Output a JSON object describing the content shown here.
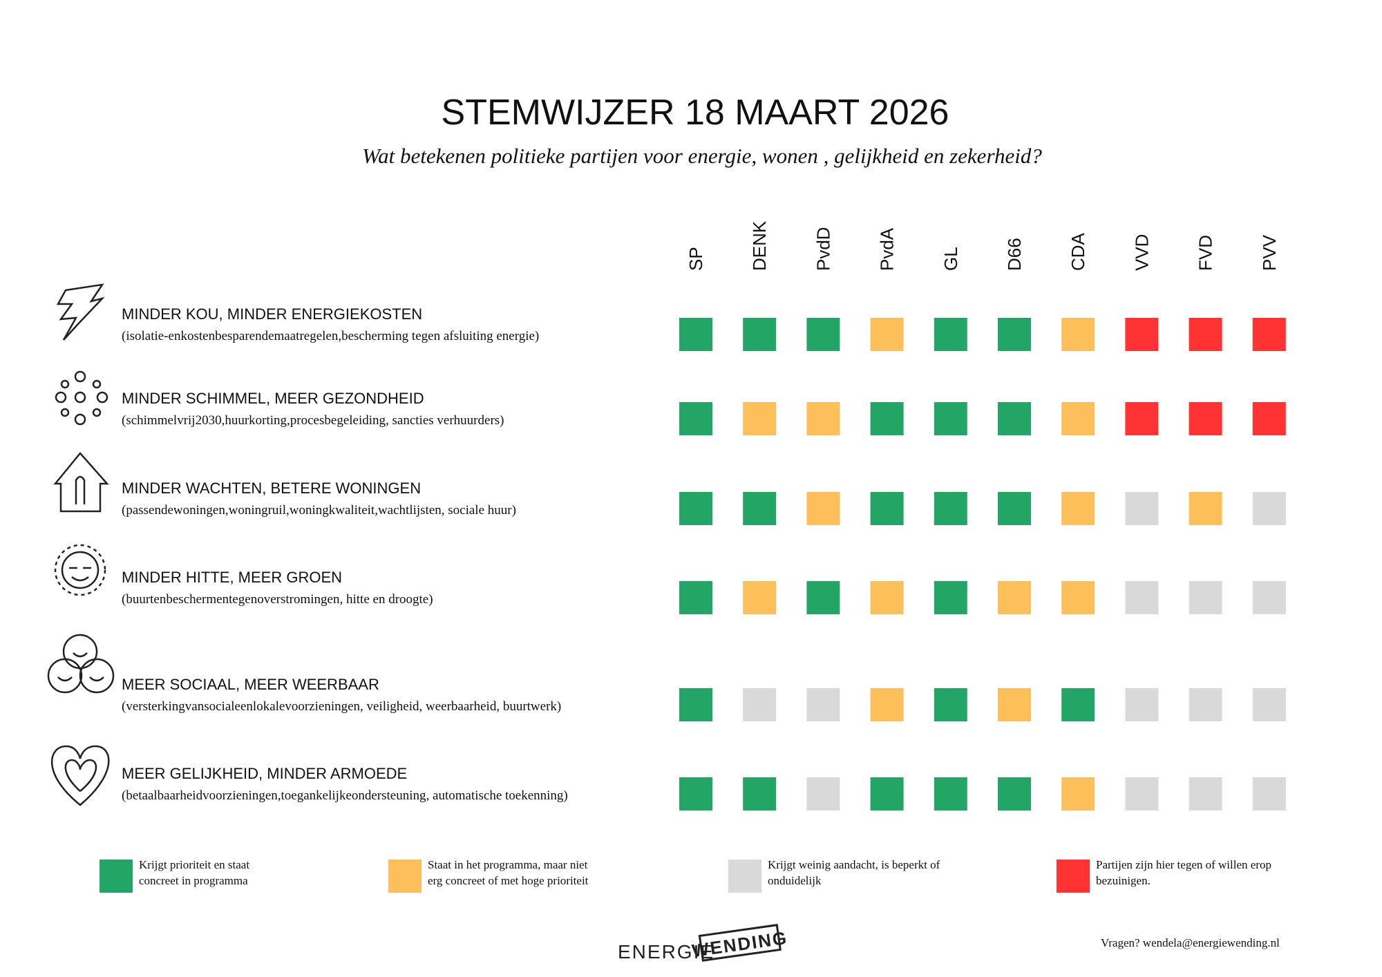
{
  "header": {
    "title": "STEMWIJZER 18 MAART 2026",
    "subtitle": "Wat betekenen politieke partijen voor energie, wonen , gelijkheid en zekerheid?"
  },
  "table": {
    "parties": [
      "SP",
      "DENK",
      "PvdD",
      "PvdA",
      "GL",
      "D66",
      "CDA",
      "VVD",
      "FVD",
      "PVV"
    ],
    "rows": [
      {
        "title": "MINDER KOU, MINDER ENERGIEKOSTEN",
        "detail": "(isolatie-enkostenbesparendemaatregelen,bescherming tegen afsluiting energie)",
        "ratings": [
          0,
          0,
          0,
          1,
          0,
          0,
          1,
          3,
          3,
          3
        ]
      },
      {
        "title": "MINDER SCHIMMEL, MEER GEZONDHEID",
        "detail": "(schimmelvrij2030,huurkorting,procesbegeleiding, sancties verhuurders)",
        "ratings": [
          0,
          1,
          1,
          0,
          0,
          0,
          1,
          3,
          3,
          3
        ]
      },
      {
        "title": "MINDER WACHTEN, BETERE WONINGEN",
        "detail": "(passendewoningen,woningruil,woningkwaliteit,wachtlijsten, sociale huur)",
        "ratings": [
          0,
          0,
          1,
          0,
          0,
          0,
          1,
          2,
          1,
          2
        ]
      },
      {
        "title": "MINDER HITTE, MEER GROEN",
        "detail": "(buurtenbeschermentegenoverstromingen, hitte en droogte)",
        "ratings": [
          0,
          1,
          0,
          1,
          0,
          1,
          1,
          2,
          2,
          2
        ]
      },
      {
        "title": "MEER SOCIAAL, MEER WEERBAAR",
        "detail": "(versterkingvansocialeenlokalevoorzieningen, veiligheid, weerbaarheid, buurtwerk)",
        "ratings": [
          0,
          2,
          2,
          1,
          0,
          1,
          0,
          2,
          2,
          2
        ]
      },
      {
        "title": "MEER GELIJKHEID, MINDER ARMOEDE",
        "detail": "(betaalbaarheidvoorzieningen,toegankelijkeondersteuning, automatische toekenning)",
        "ratings": [
          0,
          0,
          2,
          0,
          0,
          0,
          1,
          2,
          2,
          2
        ]
      }
    ]
  },
  "legend": [
    {
      "color": "#22a565",
      "lines": [
        "Krijgt prioriteit en staat",
        "concreet in programma"
      ]
    },
    {
      "color": "#fdbf5a",
      "lines": [
        "Staat in het programma, maar niet",
        "erg concreet of met hoge prioriteit"
      ]
    },
    {
      "color": "#d9d9d9",
      "lines": [
        "Krijgt weinig aandacht, is beperkt of",
        "onduidelijk"
      ]
    },
    {
      "color": "#ff3333",
      "lines": [
        "Partijen zijn hier tegen of willen erop",
        "bezuinigen."
      ]
    }
  ],
  "footer": {
    "logo_left": "ENERGIE",
    "logo_right": "WENDING",
    "contact": "Vragen? wendela@energiewending.nl"
  }
}
